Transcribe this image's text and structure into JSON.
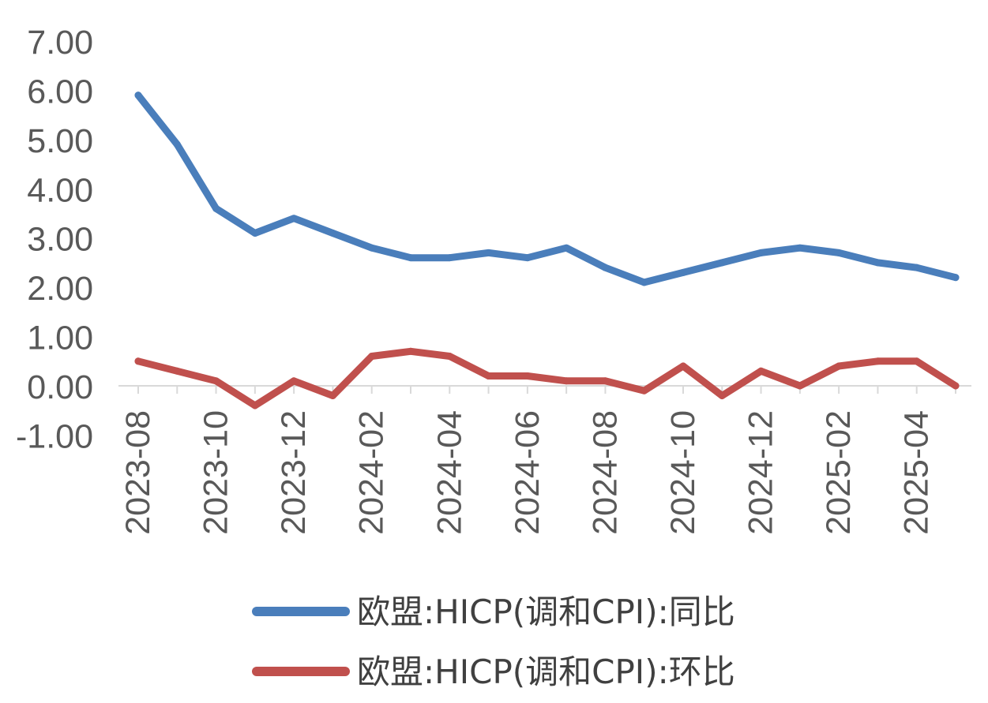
{
  "chart_data": {
    "type": "line",
    "x": [
      "2023-08",
      "2023-09",
      "2023-10",
      "2023-11",
      "2023-12",
      "2024-01",
      "2024-02",
      "2024-03",
      "2024-04",
      "2024-05",
      "2024-06",
      "2024-07",
      "2024-08",
      "2024-09",
      "2024-10",
      "2024-11",
      "2024-12",
      "2025-01",
      "2025-02",
      "2025-03",
      "2025-04",
      "2025-05"
    ],
    "x_tick_labels": [
      "2023-08",
      "2023-10",
      "2023-12",
      "2024-02",
      "2024-04",
      "2024-06",
      "2024-08",
      "2024-10",
      "2024-12",
      "2025-02",
      "2025-04"
    ],
    "y_tick_labels": [
      "7.00",
      "6.00",
      "5.00",
      "4.00",
      "3.00",
      "2.00",
      "1.00",
      "0.00",
      "-1.00"
    ],
    "ylim": [
      -1,
      7
    ],
    "grid": false,
    "legend_position": "bottom",
    "series": [
      {
        "name": "欧盟:HICP(调和CPI):同比",
        "color": "#4a7ebb",
        "values": [
          5.9,
          4.9,
          3.6,
          3.1,
          3.4,
          3.1,
          2.8,
          2.6,
          2.6,
          2.7,
          2.6,
          2.8,
          2.4,
          2.1,
          2.3,
          2.5,
          2.7,
          2.8,
          2.7,
          2.5,
          2.4,
          2.2
        ]
      },
      {
        "name": "欧盟:HICP(调和CPI):环比",
        "color": "#c0504d",
        "values": [
          0.5,
          0.3,
          0.1,
          -0.4,
          0.1,
          -0.2,
          0.6,
          0.7,
          0.6,
          0.2,
          0.2,
          0.1,
          0.1,
          -0.1,
          0.4,
          -0.2,
          0.3,
          0.0,
          0.4,
          0.5,
          0.5,
          0.0
        ]
      }
    ]
  }
}
